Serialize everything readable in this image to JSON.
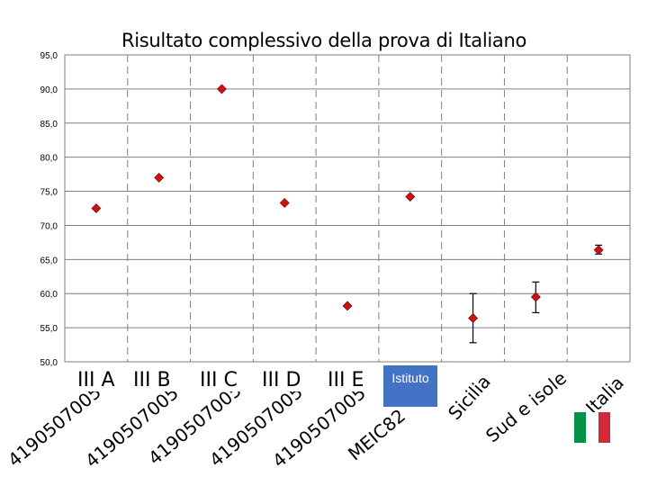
{
  "chart_data": {
    "type": "scatter",
    "title": "Risultato complessivo della prova di Italiano",
    "ylim": [
      50,
      95
    ],
    "yticks": [
      "95,0",
      "90,0",
      "85,0",
      "80,0",
      "75,0",
      "70,0",
      "65,0",
      "60,0",
      "55,0",
      "50,0"
    ],
    "grid": true,
    "marker_color": "#cc1111",
    "categories": [
      "4190507005",
      "4190507005",
      "4190507005",
      "4190507005",
      "4190507005",
      "MEIC82",
      "Sicilia",
      "Sud e isole",
      "Italia"
    ],
    "values": [
      72.5,
      77.0,
      90.0,
      73.3,
      58.2,
      74.2,
      56.4,
      59.5,
      66.4
    ],
    "error_low": [
      null,
      null,
      null,
      null,
      null,
      null,
      52.8,
      57.2,
      65.8
    ],
    "error_high": [
      null,
      null,
      null,
      null,
      null,
      null,
      60.0,
      61.7,
      67.1
    ]
  },
  "class_labels": [
    "III A",
    "III B",
    "III C",
    "III D",
    "III E"
  ],
  "istituto_label": "Istituto",
  "flag_colors": [
    "#009246",
    "#ffffff",
    "#ce2b37"
  ]
}
